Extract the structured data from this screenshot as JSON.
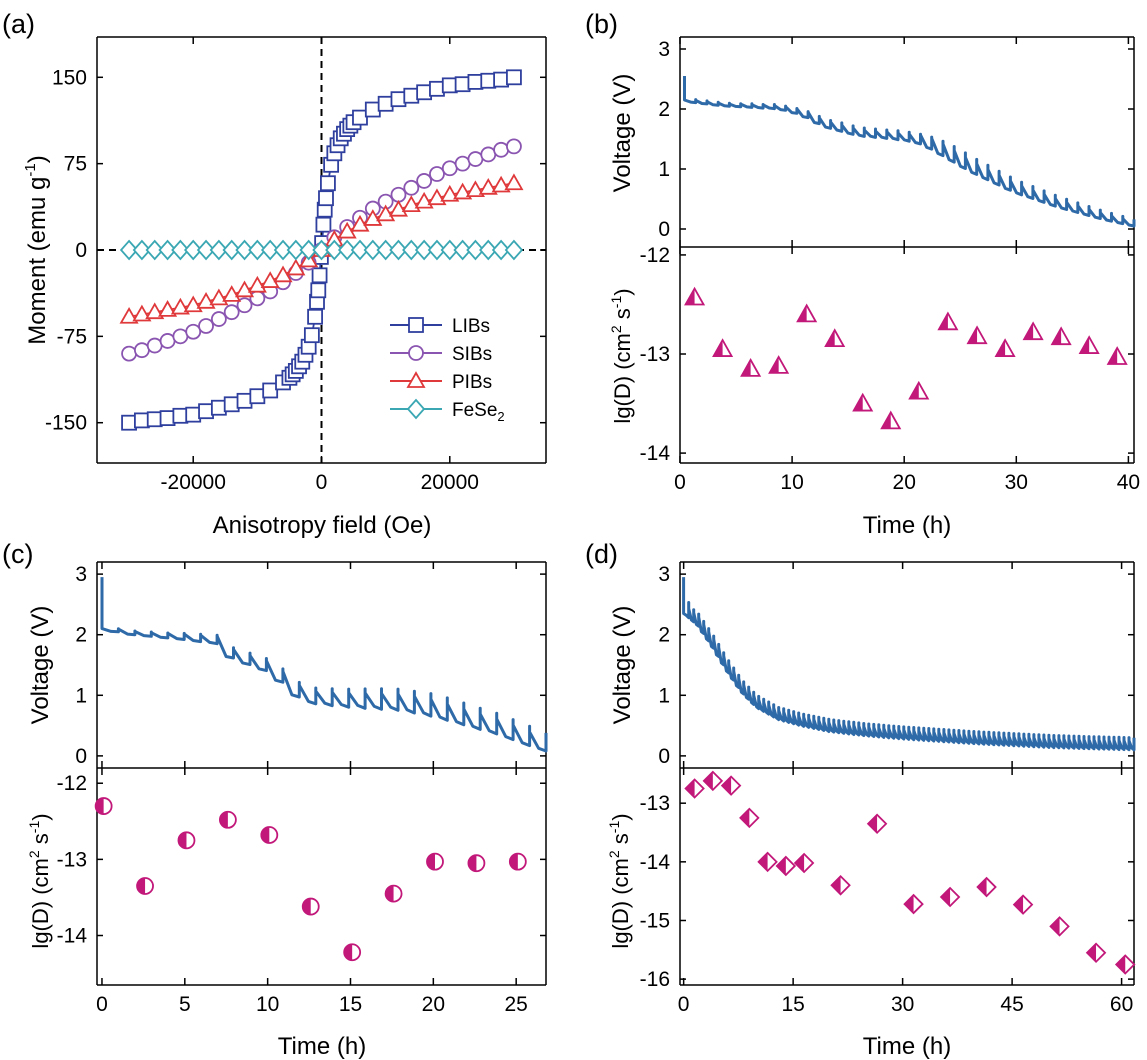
{
  "colors": {
    "libs": "#2f3f9e",
    "sibs": "#8a55b0",
    "pibs": "#e0393b",
    "fese2": "#3aa7b3",
    "voltage": "#2f6aa8",
    "marker": "#c2187a"
  },
  "chart_data": [
    {
      "panel": "(a)",
      "type": "scatter",
      "xlabel": "Anisotropy field (Oe)",
      "ylabel": "Moment (emu g-1)",
      "xlim": [
        -35000,
        35000
      ],
      "ylim": [
        -185,
        185
      ],
      "xticks": [
        -20000,
        0,
        20000
      ],
      "yticks": [
        -150,
        -75,
        0,
        75,
        150
      ],
      "legend": "bottom-right",
      "series": [
        {
          "name": "LIBs",
          "marker": "square",
          "x": [
            -30000,
            -28000,
            -26000,
            -24000,
            -22000,
            -20000,
            -18000,
            -16000,
            -14000,
            -12000,
            -10000,
            -8000,
            -6000,
            -5000,
            -4500,
            -4000,
            -3500,
            -3000,
            -2500,
            -2000,
            -1500,
            -1000,
            -700,
            -500,
            -300,
            -100,
            100,
            300,
            500,
            700,
            1000,
            1500,
            2000,
            2500,
            3000,
            3500,
            4000,
            4500,
            5000,
            6000,
            8000,
            10000,
            12000,
            14000,
            16000,
            18000,
            20000,
            22000,
            24000,
            26000,
            28000,
            30000
          ],
          "y": [
            -150,
            -148,
            -147,
            -146,
            -144,
            -143,
            -140,
            -137,
            -134,
            -131,
            -127,
            -122,
            -115,
            -111,
            -108,
            -105,
            -101,
            -97,
            -91,
            -84,
            -74,
            -58,
            -45,
            -35,
            -22,
            -6,
            6,
            22,
            35,
            45,
            58,
            74,
            84,
            91,
            97,
            101,
            105,
            108,
            111,
            115,
            122,
            127,
            131,
            134,
            137,
            140,
            143,
            144,
            146,
            147,
            148,
            150
          ]
        },
        {
          "name": "SIBs",
          "marker": "circle",
          "x": [
            -30000,
            -28000,
            -26000,
            -24000,
            -22000,
            -20000,
            -18000,
            -16000,
            -14000,
            -12000,
            -10000,
            -8000,
            -6000,
            -4000,
            -2000,
            0,
            2000,
            4000,
            6000,
            8000,
            10000,
            12000,
            14000,
            16000,
            18000,
            20000,
            22000,
            24000,
            26000,
            28000,
            30000
          ],
          "y": [
            -90,
            -87,
            -83,
            -79,
            -75,
            -71,
            -66,
            -60,
            -54,
            -48,
            -42,
            -36,
            -28,
            -20,
            -11,
            0,
            11,
            20,
            28,
            36,
            42,
            48,
            54,
            60,
            66,
            71,
            75,
            79,
            83,
            87,
            90
          ]
        },
        {
          "name": "PIBs",
          "marker": "triangle",
          "x": [
            -30000,
            -28000,
            -26000,
            -24000,
            -22000,
            -20000,
            -18000,
            -16000,
            -14000,
            -12000,
            -10000,
            -8000,
            -6000,
            -4000,
            -2000,
            0,
            2000,
            4000,
            6000,
            8000,
            10000,
            12000,
            14000,
            16000,
            18000,
            20000,
            22000,
            24000,
            26000,
            28000,
            30000
          ],
          "y": [
            -58,
            -56,
            -54,
            -52,
            -50,
            -48,
            -45,
            -42,
            -39,
            -35,
            -31,
            -27,
            -22,
            -16,
            -9,
            0,
            9,
            16,
            22,
            27,
            31,
            35,
            39,
            42,
            45,
            48,
            50,
            52,
            54,
            56,
            58
          ]
        },
        {
          "name": "FeSe2",
          "label_main": "FeSe",
          "label_sub": "2",
          "marker": "diamond",
          "x": [
            -30000,
            -28000,
            -26000,
            -24000,
            -22000,
            -20000,
            -18000,
            -16000,
            -14000,
            -12000,
            -10000,
            -8000,
            -6000,
            -4000,
            -2000,
            0,
            2000,
            4000,
            6000,
            8000,
            10000,
            12000,
            14000,
            16000,
            18000,
            20000,
            22000,
            24000,
            26000,
            28000,
            30000
          ],
          "y": [
            0,
            0,
            0,
            0,
            0,
            0,
            0,
            0,
            0,
            0,
            0,
            0,
            0,
            0,
            0,
            0,
            0,
            0,
            0,
            0,
            0,
            0,
            0,
            0,
            0,
            0,
            0,
            0,
            0,
            0,
            0
          ]
        }
      ]
    },
    {
      "panel": "(b)",
      "type": "line",
      "ylabel": "Voltage (V)",
      "xlim": [
        0,
        40.5
      ],
      "ylim": [
        -0.3,
        3.2
      ],
      "yticks": [
        0,
        1,
        2,
        3
      ],
      "pulses": 40,
      "x_start": 0.4,
      "v_start": 2.55,
      "anchors": {
        "x": [
          0.4,
          0.8,
          4,
          9,
          11,
          13,
          16,
          19,
          21,
          22,
          26,
          30,
          34,
          38,
          40.5
        ],
        "y": [
          2.15,
          2.12,
          2.05,
          2.0,
          1.9,
          1.7,
          1.55,
          1.5,
          1.45,
          1.38,
          0.95,
          0.6,
          0.35,
          0.15,
          0.05
        ]
      },
      "relax": [
        0.05,
        0.05,
        0.05,
        0.05,
        0.05,
        0.06,
        0.06,
        0.07,
        0.07,
        0.08,
        0.1,
        0.12,
        0.13,
        0.14,
        0.14,
        0.14,
        0.14,
        0.14,
        0.15,
        0.15,
        0.16,
        0.2,
        0.24,
        0.26,
        0.26,
        0.25,
        0.24,
        0.23,
        0.22,
        0.21,
        0.2,
        0.19,
        0.18,
        0.17,
        0.16,
        0.15,
        0.14,
        0.13,
        0.12,
        0.11
      ]
    },
    {
      "panel": "(b)",
      "type": "scatter",
      "xlabel": "Time (h)",
      "ylabel_main": "lg(D) (cm",
      "ylabel_sup1": "2",
      "ylabel_mid": " s",
      "ylabel_sup2": "-1",
      "ylabel_end": ")",
      "xlim": [
        0,
        40.5
      ],
      "ylim": [
        -14.1,
        -11.92
      ],
      "xticks": [
        0,
        10,
        20,
        30,
        40
      ],
      "yticks": [
        -14,
        -13,
        -12
      ],
      "marker": "half-triangle",
      "x": [
        1.3,
        3.8,
        6.3,
        8.8,
        11.3,
        13.8,
        16.3,
        18.8,
        21.3,
        23.9,
        26.5,
        29,
        31.5,
        34,
        36.5,
        39
      ],
      "y": [
        -12.43,
        -12.95,
        -13.15,
        -13.12,
        -12.6,
        -12.85,
        -13.5,
        -13.68,
        -13.38,
        -12.68,
        -12.82,
        -12.95,
        -12.78,
        -12.83,
        -12.92,
        -13.03
      ]
    },
    {
      "panel": "(c)",
      "type": "line",
      "ylabel": "Voltage (V)",
      "xlim": [
        -0.3,
        26.8
      ],
      "ylim": [
        -0.2,
        3.2
      ],
      "yticks": [
        0,
        1,
        2,
        3
      ],
      "pulses": 27,
      "x_start": 0,
      "v_start": 2.95,
      "anchors": {
        "x": [
          0,
          0.3,
          2,
          5,
          7,
          8,
          10,
          11,
          12,
          13,
          15,
          18,
          20,
          22,
          24,
          26,
          26.8
        ],
        "y": [
          2.1,
          2.08,
          2.0,
          1.92,
          1.85,
          1.6,
          1.4,
          1.2,
          0.95,
          0.85,
          0.8,
          0.75,
          0.65,
          0.5,
          0.35,
          0.15,
          0.08
        ]
      },
      "relax": [
        0.05,
        0.06,
        0.07,
        0.08,
        0.1,
        0.12,
        0.14,
        0.17,
        0.19,
        0.2,
        0.22,
        0.24,
        0.26,
        0.28,
        0.3,
        0.32,
        0.34,
        0.35,
        0.36,
        0.37,
        0.37,
        0.36,
        0.35,
        0.34,
        0.33,
        0.32,
        0.3
      ]
    },
    {
      "panel": "(c)",
      "type": "scatter",
      "xlabel": "Time (h)",
      "ylabel_main": "lg(D) (cm",
      "ylabel_sup1": "2",
      "ylabel_mid": " s",
      "ylabel_sup2": "-1",
      "ylabel_end": ")",
      "xlim": [
        -0.3,
        26.8
      ],
      "ylim": [
        -14.65,
        -11.8
      ],
      "xticks": [
        0,
        5,
        10,
        15,
        20,
        25
      ],
      "yticks": [
        -14,
        -13,
        -12
      ],
      "marker": "half-circle",
      "x": [
        0.1,
        2.6,
        5.1,
        7.6,
        10.1,
        12.6,
        15.1,
        17.6,
        20.1,
        22.6,
        25.1
      ],
      "y": [
        -12.3,
        -13.35,
        -12.75,
        -12.48,
        -12.68,
        -13.62,
        -14.22,
        -13.45,
        -13.03,
        -13.05,
        -13.03
      ]
    },
    {
      "panel": "(d)",
      "type": "line",
      "ylabel": "Voltage (V)",
      "xlim": [
        -0.5,
        61.7
      ],
      "ylim": [
        -0.2,
        3.2
      ],
      "yticks": [
        0,
        1,
        2,
        3
      ],
      "pulses": 90,
      "x_start": 0,
      "v_start": 2.95,
      "anchors": {
        "x": [
          0,
          0.5,
          2,
          4,
          6,
          8,
          10,
          13,
          16,
          20,
          25,
          30,
          35,
          40,
          45,
          50,
          55,
          61.7
        ],
        "y": [
          2.35,
          2.3,
          2.15,
          1.8,
          1.4,
          1.05,
          0.8,
          0.6,
          0.5,
          0.4,
          0.33,
          0.28,
          0.24,
          0.2,
          0.17,
          0.14,
          0.12,
          0.1
        ]
      },
      "relax_first": 0.25,
      "relax_base": 0.2
    },
    {
      "panel": "(d)",
      "type": "scatter",
      "xlabel": "Time (h)",
      "ylabel_main": "lg(D) (cm",
      "ylabel_sup1": "2",
      "ylabel_mid": " s",
      "ylabel_sup2": "-1",
      "ylabel_end": ")",
      "xlim": [
        -0.5,
        61.7
      ],
      "ylim": [
        -16.1,
        -12.4
      ],
      "xticks": [
        0,
        15,
        30,
        45,
        60
      ],
      "yticks": [
        -16,
        -15,
        -14,
        -13
      ],
      "marker": "half-diamond",
      "x": [
        1.5,
        4,
        6.5,
        9,
        11.5,
        14,
        16.5,
        21.5,
        26.5,
        31.5,
        36.5,
        41.5,
        46.5,
        51.5,
        56.5,
        60.5
      ],
      "y": [
        -12.75,
        -12.62,
        -12.7,
        -13.25,
        -14.0,
        -14.07,
        -14.02,
        -14.4,
        -13.35,
        -14.72,
        -14.6,
        -14.43,
        -14.73,
        -15.1,
        -15.55,
        -15.75
      ]
    }
  ],
  "labels": {
    "a_tag": "(a)",
    "b_tag": "(b)",
    "c_tag": "(c)",
    "d_tag": "(d)",
    "a_ylabel_main": "Moment (emu g",
    "a_ylabel_sup": "-1",
    "a_ylabel_end": ")"
  }
}
